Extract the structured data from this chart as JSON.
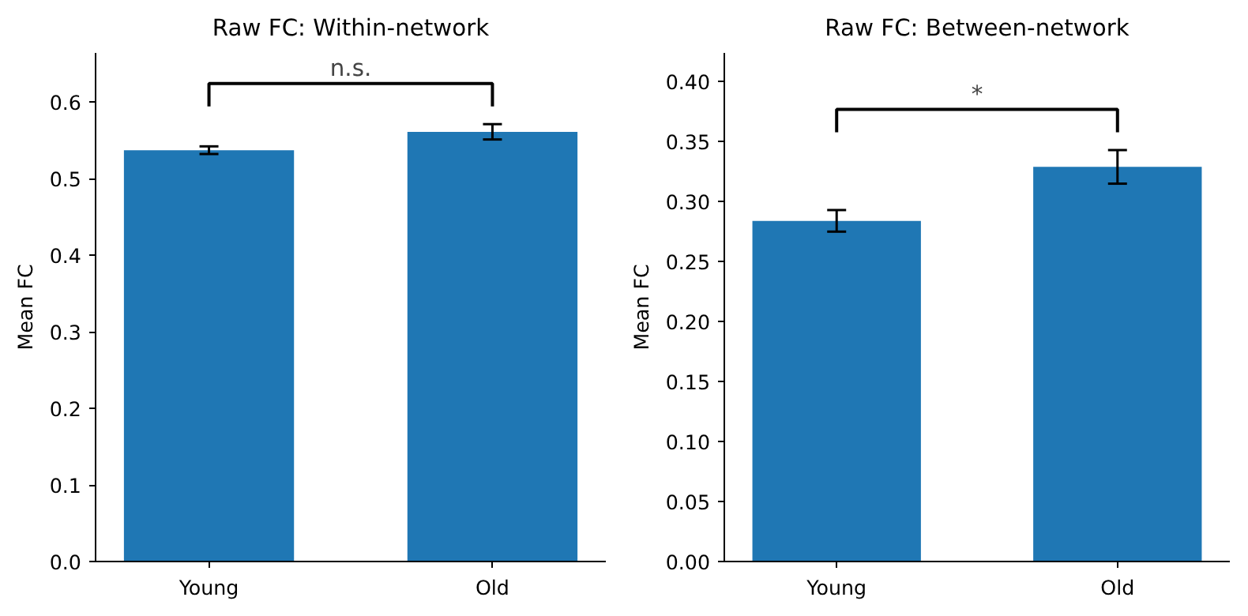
{
  "chart_data": [
    {
      "type": "bar",
      "title": "Raw FC: Within-network",
      "ylabel": "Mean FC",
      "categories": [
        "Young",
        "Old"
      ],
      "values": [
        0.537,
        0.561
      ],
      "errors": [
        0.005,
        0.01
      ],
      "color": "#1f77b4",
      "ylim": [
        0,
        0.664
      ],
      "yticks": [
        {
          "value": 0,
          "label": "0.0"
        },
        0.1,
        0.2,
        0.3,
        0.4,
        0.5,
        0.6
      ],
      "grid": false,
      "annotations": [
        "n.s."
      ]
    },
    {
      "type": "bar",
      "title": "Raw FC: Between-network",
      "ylabel": "Mean FC",
      "categories": [
        "Young",
        "Old"
      ],
      "values": [
        0.284,
        0.329
      ],
      "errors": [
        0.009,
        0.014
      ],
      "color": "#1f77b4",
      "ylim": [
        0,
        0.424
      ],
      "yticks": [
        {
          "value": 0,
          "label": "0.00"
        },
        {
          "value": 0.05,
          "label": "0.05"
        },
        {
          "value": 0.1,
          "label": "0.10"
        },
        {
          "value": 0.15,
          "label": "0.15"
        },
        {
          "value": 0.2,
          "label": "0.20"
        },
        {
          "value": 0.25,
          "label": "0.25"
        },
        {
          "value": 0.3,
          "label": "0.30"
        },
        {
          "value": 0.35,
          "label": "0.35"
        },
        {
          "value": 0.4,
          "label": "0.40"
        }
      ],
      "grid": false,
      "annotations": [
        "*"
      ]
    }
  ]
}
